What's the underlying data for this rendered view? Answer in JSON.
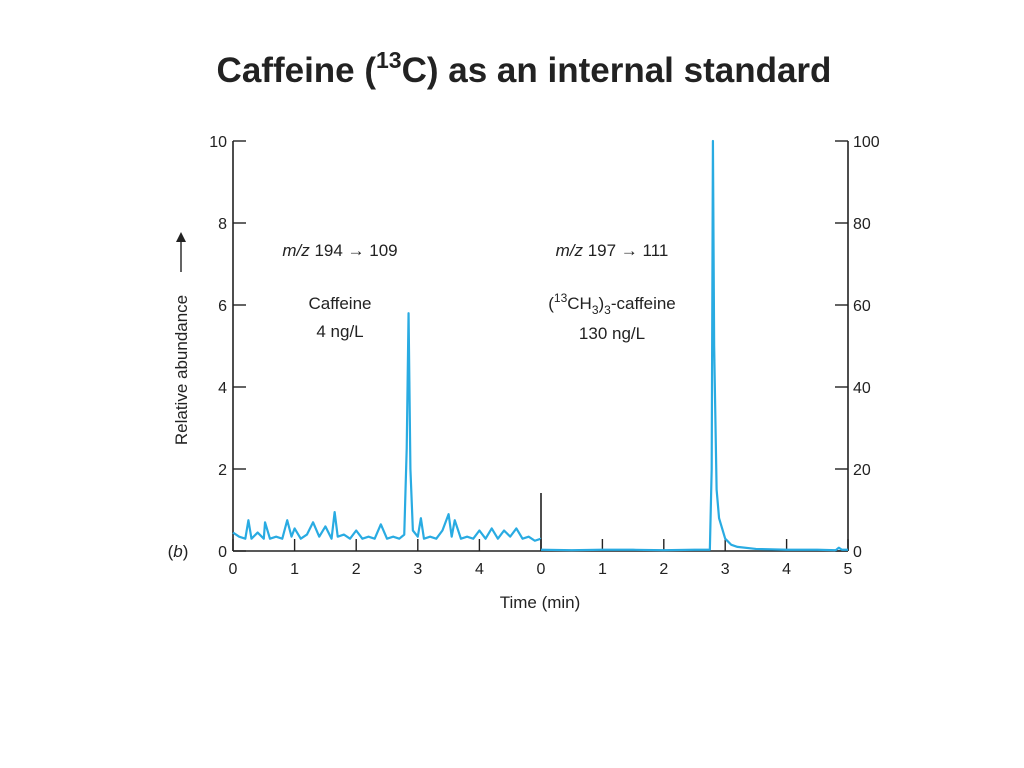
{
  "title": [
    "Caffeine (",
    "13",
    "C) as an internal standard"
  ],
  "panel_label": [
    "(",
    "b",
    ")"
  ],
  "axis_labels": {
    "x": "Time (min)",
    "y": "Relative abundance"
  },
  "chart_data": [
    {
      "type": "line",
      "annotations": [
        [
          "m/z",
          " 194 → 109"
        ],
        [
          "Caffeine"
        ],
        [
          "4 ng/L"
        ]
      ],
      "x": [
        0,
        0.1,
        0.2,
        0.25,
        0.3,
        0.4,
        0.5,
        0.52,
        0.6,
        0.7,
        0.8,
        0.88,
        0.95,
        1.0,
        1.1,
        1.2,
        1.3,
        1.4,
        1.5,
        1.6,
        1.65,
        1.7,
        1.8,
        1.9,
        2.0,
        2.1,
        2.2,
        2.3,
        2.4,
        2.5,
        2.6,
        2.7,
        2.78,
        2.82,
        2.85,
        2.88,
        2.92,
        3.0,
        3.05,
        3.1,
        3.2,
        3.3,
        3.4,
        3.5,
        3.55,
        3.6,
        3.7,
        3.8,
        3.9,
        4.0,
        4.1,
        4.2,
        4.3,
        4.4,
        4.5,
        4.6,
        4.7,
        4.8,
        4.9,
        5.0
      ],
      "series": [
        {
          "color": "#29abe2",
          "values": [
            0.45,
            0.35,
            0.3,
            0.75,
            0.3,
            0.45,
            0.3,
            0.7,
            0.3,
            0.35,
            0.3,
            0.75,
            0.35,
            0.55,
            0.3,
            0.4,
            0.7,
            0.35,
            0.6,
            0.3,
            0.95,
            0.35,
            0.4,
            0.3,
            0.5,
            0.3,
            0.35,
            0.3,
            0.65,
            0.3,
            0.35,
            0.3,
            0.4,
            2.5,
            5.8,
            2.0,
            0.5,
            0.35,
            0.8,
            0.3,
            0.35,
            0.3,
            0.5,
            0.9,
            0.35,
            0.75,
            0.3,
            0.35,
            0.3,
            0.5,
            0.3,
            0.55,
            0.3,
            0.5,
            0.35,
            0.55,
            0.3,
            0.35,
            0.25,
            0.3
          ]
        }
      ],
      "xlim": [
        0,
        5
      ],
      "xticks": [
        0,
        1,
        2,
        3,
        4
      ],
      "ylim": [
        0,
        10
      ],
      "yticks": [
        0,
        2,
        4,
        6,
        8,
        10
      ]
    },
    {
      "type": "line",
      "annotations": [
        [
          "m/z",
          " 197 → 111"
        ],
        [
          "(",
          "13",
          "CH",
          "3",
          ")",
          "3",
          "-caffeine"
        ],
        [
          "130 ng/L"
        ]
      ],
      "x": [
        0,
        0.5,
        1,
        1.5,
        2,
        2.5,
        2.75,
        2.78,
        2.8,
        2.82,
        2.86,
        2.9,
        3.0,
        3.1,
        3.2,
        3.5,
        4,
        4.5,
        4.8,
        4.85,
        4.9,
        5
      ],
      "series": [
        {
          "color": "#29abe2",
          "axis": "y2",
          "values": [
            0.3,
            0.2,
            0.3,
            0.3,
            0.2,
            0.3,
            0.3,
            20,
            100,
            50,
            15,
            8,
            3,
            1.5,
            1,
            0.5,
            0.3,
            0.3,
            0.2,
            0.8,
            0.3,
            0.3
          ]
        }
      ],
      "xlim": [
        0,
        5
      ],
      "xticks": [
        0,
        1,
        2,
        3,
        4,
        5
      ],
      "y2lim": [
        0,
        100
      ],
      "y2ticks": [
        0,
        20,
        40,
        60,
        80,
        100
      ]
    }
  ]
}
